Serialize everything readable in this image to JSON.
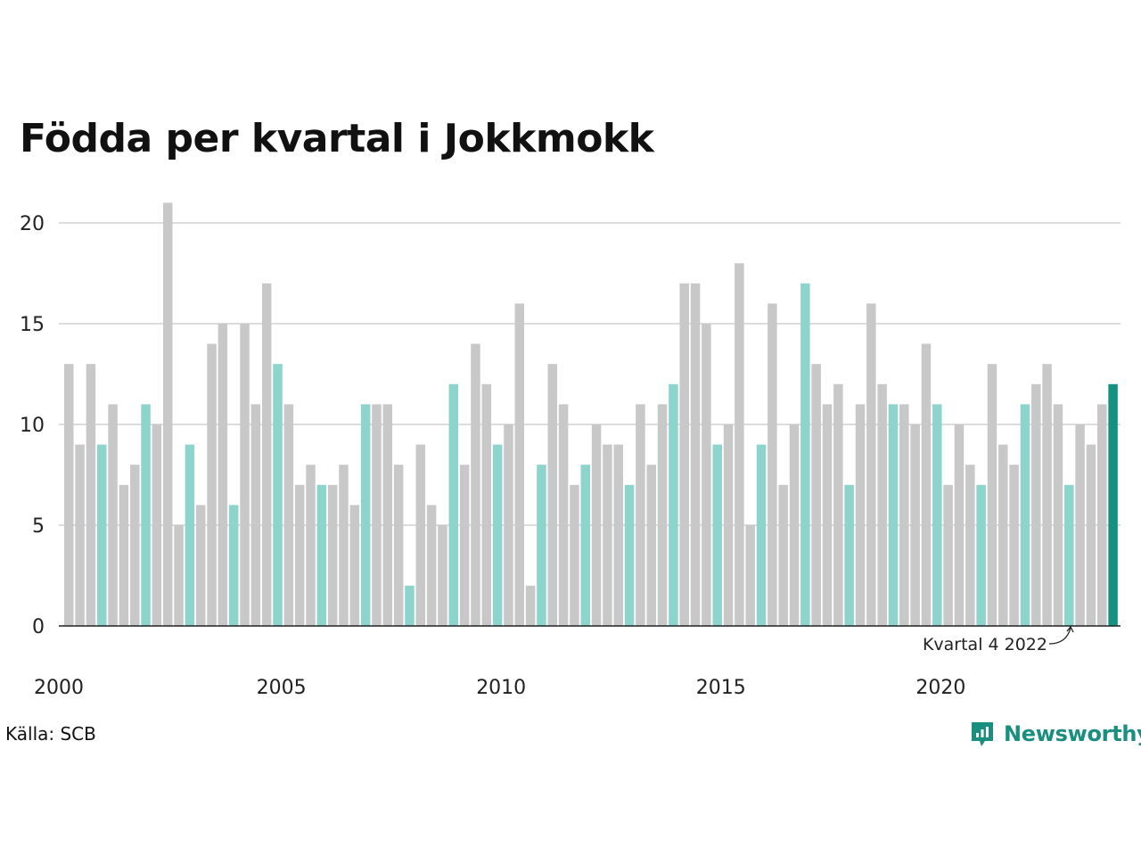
{
  "title": "Födda per kvartal i Jokkmokk",
  "source": "Källa: SCB",
  "brand": "Newsworthy",
  "colors": {
    "default": "#c8c8c8",
    "highlight": "#8cd4cc",
    "latest": "#14917f",
    "brand": "#1a8f80",
    "grid": "#dcdcdc"
  },
  "chart_data": {
    "type": "bar",
    "title": "Födda per kvartal i Jokkmokk",
    "ylim": [
      0,
      21
    ],
    "y_ticks": [
      0,
      5,
      10,
      15,
      20
    ],
    "x_tick_labels": [
      "2000",
      "2005",
      "2010",
      "2015",
      "2020"
    ],
    "grid": true,
    "annotation": "Kvartal 4 2022",
    "highlight_rule": "Kvartal 4 bars highlighted; latest quarter in dark teal",
    "categories": [
      "2000 K1",
      "2000 K2",
      "2000 K3",
      "2000 K4",
      "2001 K1",
      "2001 K2",
      "2001 K3",
      "2001 K4",
      "2002 K1",
      "2002 K2",
      "2002 K3",
      "2002 K4",
      "2003 K1",
      "2003 K2",
      "2003 K3",
      "2003 K4",
      "2004 K1",
      "2004 K2",
      "2004 K3",
      "2004 K4",
      "2005 K1",
      "2005 K2",
      "2005 K3",
      "2005 K4",
      "2006 K1",
      "2006 K2",
      "2006 K3",
      "2006 K4",
      "2007 K1",
      "2007 K2",
      "2007 K3",
      "2007 K4",
      "2008 K1",
      "2008 K2",
      "2008 K3",
      "2008 K4",
      "2009 K1",
      "2009 K2",
      "2009 K3",
      "2009 K4",
      "2010 K1",
      "2010 K2",
      "2010 K3",
      "2010 K4",
      "2011 K1",
      "2011 K2",
      "2011 K3",
      "2011 K4",
      "2012 K1",
      "2012 K2",
      "2012 K3",
      "2012 K4",
      "2013 K1",
      "2013 K2",
      "2013 K3",
      "2013 K4",
      "2014 K1",
      "2014 K2",
      "2014 K3",
      "2014 K4",
      "2015 K1",
      "2015 K2",
      "2015 K3",
      "2015 K4",
      "2016 K1",
      "2016 K2",
      "2016 K3",
      "2016 K4",
      "2017 K1",
      "2017 K2",
      "2017 K3",
      "2017 K4",
      "2018 K1",
      "2018 K2",
      "2018 K3",
      "2018 K4",
      "2019 K1",
      "2019 K2",
      "2019 K3",
      "2019 K4",
      "2020 K1",
      "2020 K2",
      "2020 K3",
      "2020 K4",
      "2021 K1",
      "2021 K2",
      "2021 K3",
      "2021 K4",
      "2022 K1",
      "2022 K2",
      "2022 K3",
      "2022 K4",
      "2023 K1",
      "2023 K2",
      "2023 K3",
      "2023 K4"
    ],
    "values": [
      13,
      9,
      13,
      9,
      11,
      7,
      8,
      11,
      10,
      21,
      5,
      9,
      6,
      14,
      15,
      6,
      15,
      11,
      17,
      13,
      11,
      7,
      8,
      7,
      7,
      8,
      6,
      11,
      11,
      11,
      8,
      2,
      9,
      6,
      5,
      12,
      8,
      14,
      12,
      9,
      10,
      16,
      2,
      8,
      13,
      11,
      7,
      8,
      10,
      9,
      9,
      7,
      11,
      8,
      11,
      12,
      17,
      17,
      15,
      9,
      10,
      18,
      5,
      9,
      16,
      7,
      10,
      17,
      13,
      11,
      12,
      7,
      11,
      16,
      12,
      11,
      11,
      10,
      14,
      11,
      7,
      10,
      8,
      7,
      13,
      9,
      8,
      11,
      12,
      13,
      11,
      7,
      10,
      9,
      11,
      12
    ]
  }
}
